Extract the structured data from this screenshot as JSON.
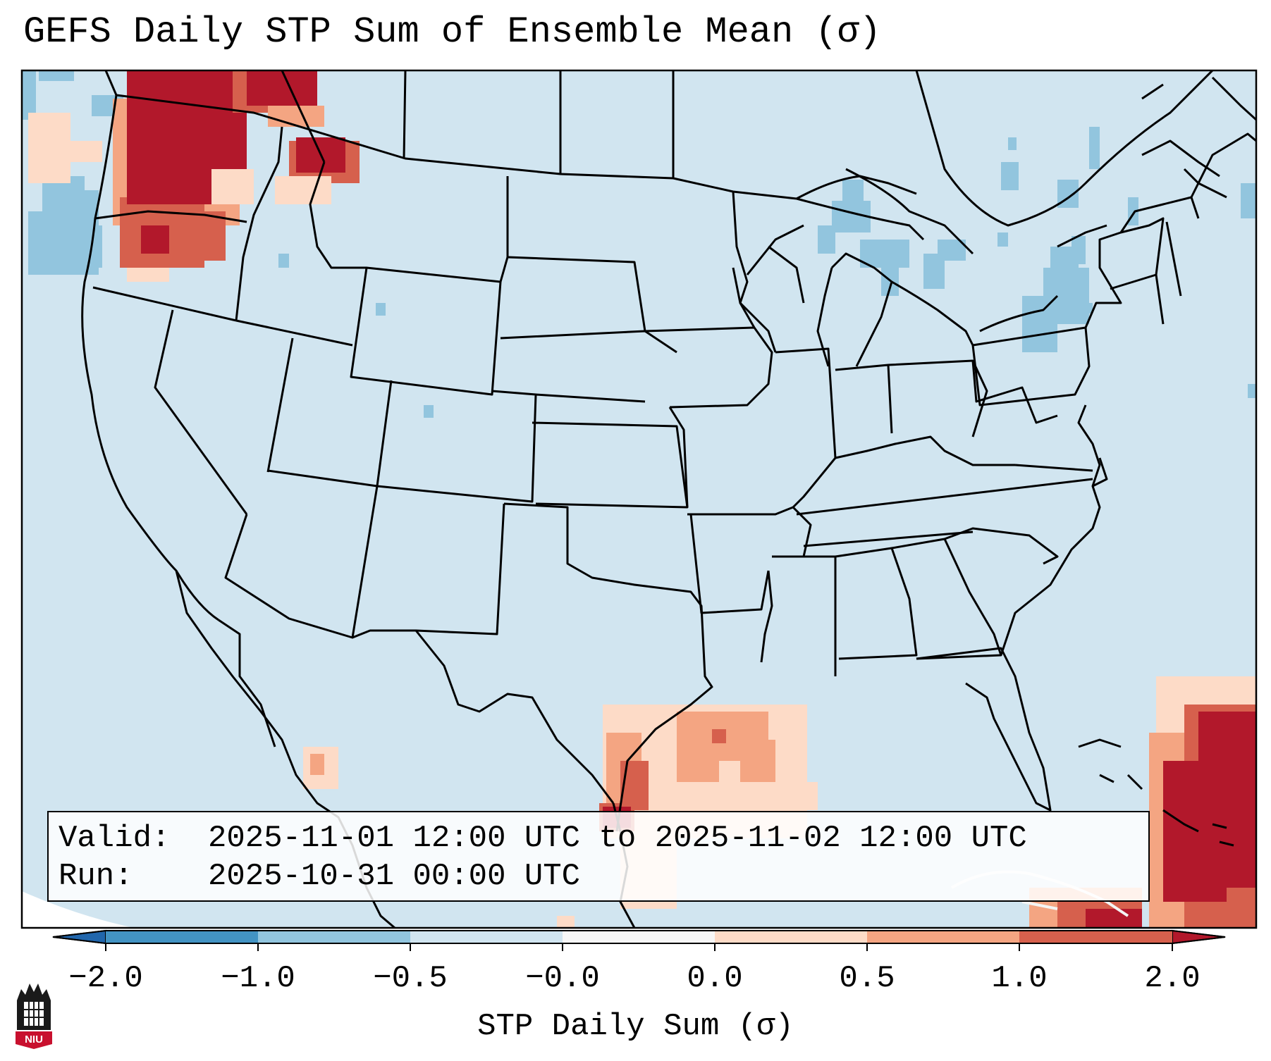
{
  "title": "GEFS Daily STP Sum of Ensemble Mean (σ)",
  "info": {
    "valid_label": "Valid:",
    "valid_value": "2025-11-01 12:00 UTC to 2025-11-02 12:00 UTC",
    "run_label": "Run:",
    "run_value": "2025-10-31 00:00 UTC"
  },
  "colorbar": {
    "label": "STP Daily Sum (σ)",
    "ticks": [
      "−2.0",
      "−1.0",
      "−0.5",
      "−0.0",
      "0.0",
      "0.5",
      "1.0",
      "2.0"
    ],
    "colors": [
      "#4393c3",
      "#92c5de",
      "#d1e5f0",
      "#f7f7f7",
      "#fddbc7",
      "#f4a582",
      "#d6604d"
    ],
    "under_color": "#2166ac",
    "over_color": "#b2182b"
  },
  "map": {
    "background_color": "#d1e5f0",
    "region": "Continental United States",
    "features": [
      "state-borders",
      "coastlines",
      "great-lakes"
    ],
    "anomaly_areas": [
      {
        "region": "Pacific Northwest",
        "level": "strong-positive"
      },
      {
        "region": "Northern Rockies",
        "level": "strong-positive"
      },
      {
        "region": "Texas Gulf Coast",
        "level": "moderate-positive"
      },
      {
        "region": "Western Atlantic / Bahamas",
        "level": "strong-positive"
      },
      {
        "region": "Great Lakes",
        "level": "weak-negative"
      },
      {
        "region": "Northeast Pacific",
        "level": "weak-negative"
      }
    ]
  },
  "logo": {
    "text": "NIU",
    "color": "#c8102e"
  }
}
